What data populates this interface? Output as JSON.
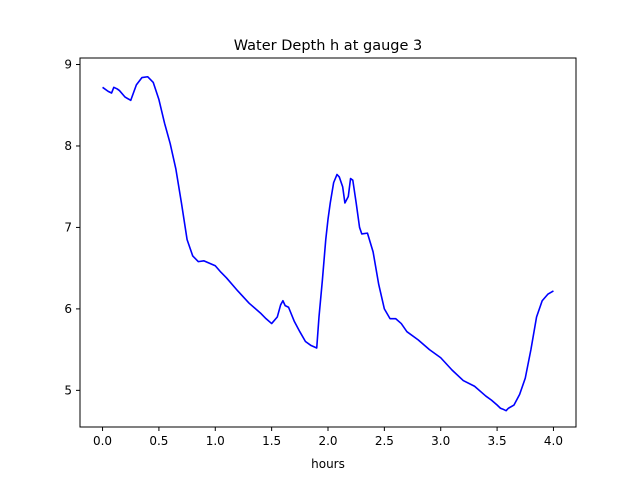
{
  "chart_data": {
    "type": "line",
    "title": "Water Depth h at gauge 3",
    "xlabel": "hours",
    "ylabel": "",
    "xlim": [
      -0.2,
      4.2
    ],
    "ylim": [
      4.55,
      9.08
    ],
    "xticks": [
      0.0,
      0.5,
      1.0,
      1.5,
      2.0,
      2.5,
      3.0,
      3.5,
      4.0
    ],
    "xtick_labels": [
      "0.0",
      "0.5",
      "1.0",
      "1.5",
      "2.0",
      "2.5",
      "3.0",
      "3.5",
      "4.0"
    ],
    "yticks": [
      5,
      6,
      7,
      8,
      9
    ],
    "ytick_labels": [
      "5",
      "6",
      "7",
      "8",
      "9"
    ],
    "grid": false,
    "series": [
      {
        "color": "#0000ff",
        "x": [
          0.0,
          0.05,
          0.08,
          0.1,
          0.13,
          0.15,
          0.2,
          0.25,
          0.3,
          0.35,
          0.4,
          0.45,
          0.5,
          0.55,
          0.6,
          0.65,
          0.7,
          0.75,
          0.8,
          0.85,
          0.9,
          1.0,
          1.05,
          1.1,
          1.2,
          1.3,
          1.4,
          1.45,
          1.5,
          1.55,
          1.58,
          1.6,
          1.62,
          1.65,
          1.7,
          1.75,
          1.8,
          1.85,
          1.9,
          1.92,
          1.95,
          1.98,
          2.0,
          2.02,
          2.05,
          2.08,
          2.1,
          2.13,
          2.15,
          2.18,
          2.2,
          2.22,
          2.25,
          2.28,
          2.3,
          2.35,
          2.4,
          2.45,
          2.5,
          2.55,
          2.6,
          2.65,
          2.7,
          2.8,
          2.9,
          3.0,
          3.1,
          3.2,
          3.3,
          3.4,
          3.45,
          3.5,
          3.53,
          3.55,
          3.58,
          3.6,
          3.65,
          3.7,
          3.75,
          3.8,
          3.85,
          3.9,
          3.95,
          4.0
        ],
        "y": [
          8.72,
          8.67,
          8.65,
          8.72,
          8.7,
          8.68,
          8.6,
          8.56,
          8.75,
          8.84,
          8.85,
          8.78,
          8.57,
          8.28,
          8.03,
          7.72,
          7.3,
          6.85,
          6.65,
          6.58,
          6.59,
          6.53,
          6.45,
          6.38,
          6.22,
          6.07,
          5.95,
          5.88,
          5.82,
          5.9,
          6.05,
          6.1,
          6.04,
          6.02,
          5.85,
          5.72,
          5.6,
          5.55,
          5.52,
          5.9,
          6.35,
          6.85,
          7.1,
          7.3,
          7.55,
          7.65,
          7.62,
          7.5,
          7.3,
          7.38,
          7.6,
          7.58,
          7.3,
          7.0,
          6.92,
          6.93,
          6.7,
          6.3,
          6.0,
          5.88,
          5.88,
          5.82,
          5.72,
          5.62,
          5.5,
          5.4,
          5.25,
          5.12,
          5.05,
          4.93,
          4.88,
          4.82,
          4.78,
          4.77,
          4.75,
          4.78,
          4.82,
          4.95,
          5.15,
          5.5,
          5.9,
          6.1,
          6.18,
          6.22
        ]
      }
    ]
  }
}
